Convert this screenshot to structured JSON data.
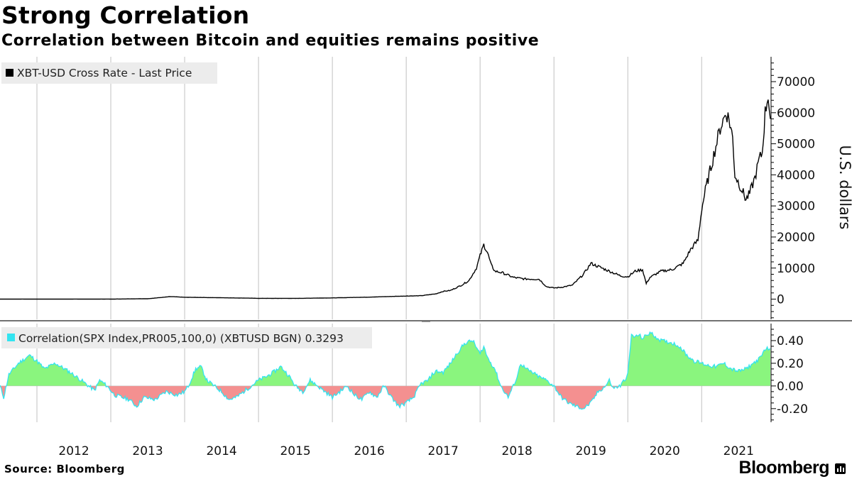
{
  "title": "Strong Correlation",
  "subtitle": "Correlation between Bitcoin and equities remains positive",
  "source": "Source: Bloomberg",
  "brand": "Bloomberg",
  "colors": {
    "price_line": "#000000",
    "corr_line": "#33e4f0",
    "corr_positive": "#8af57e",
    "corr_negative": "#f49090",
    "grid": "#c0c0c0"
  },
  "chart_data": [
    {
      "type": "line",
      "title": "XBT-USD Cross Rate - Last Price",
      "legend": "XBT-USD Cross Rate - Last Price",
      "legend_position": "top-left",
      "ylabel": "U.S. dollars",
      "ylim": [
        -6500,
        78000
      ],
      "yticks": [
        0,
        10000,
        20000,
        30000,
        40000,
        50000,
        60000,
        70000
      ],
      "x_range": [
        2011.5,
        2021.93
      ],
      "series": [
        {
          "name": "XBT-USD Cross Rate - Last Price",
          "x": [
            2011.5,
            2012.0,
            2012.5,
            2013.0,
            2013.3,
            2013.5,
            2013.8,
            2013.92,
            2014.0,
            2014.2,
            2014.5,
            2014.8,
            2015.0,
            2015.5,
            2016.0,
            2016.5,
            2017.0,
            2017.2,
            2017.4,
            2017.5,
            2017.6,
            2017.75,
            2017.85,
            2017.95,
            2018.0,
            2018.05,
            2018.1,
            2018.15,
            2018.2,
            2018.3,
            2018.45,
            2018.6,
            2018.8,
            2018.9,
            2019.0,
            2019.1,
            2019.25,
            2019.4,
            2019.5,
            2019.6,
            2019.75,
            2019.9,
            2020.0,
            2020.1,
            2020.2,
            2020.25,
            2020.3,
            2020.45,
            2020.6,
            2020.75,
            2020.85,
            2020.95,
            2021.0,
            2021.05,
            2021.1,
            2021.15,
            2021.25,
            2021.33,
            2021.37,
            2021.42,
            2021.45,
            2021.55,
            2021.6,
            2021.65,
            2021.72,
            2021.78,
            2021.82,
            2021.86,
            2021.9,
            2021.93
          ],
          "values": [
            10,
            5,
            8,
            15,
            100,
            130,
            800,
            700,
            600,
            550,
            450,
            350,
            260,
            250,
            400,
            650,
            1000,
            1100,
            1700,
            2500,
            2800,
            4500,
            6000,
            10000,
            14000,
            17500,
            15000,
            11000,
            9000,
            8500,
            7000,
            6500,
            6400,
            4000,
            3600,
            3800,
            4500,
            8000,
            11500,
            10500,
            9000,
            7500,
            7200,
            9000,
            9500,
            5000,
            7000,
            9000,
            9500,
            11500,
            16000,
            19000,
            29000,
            35000,
            40000,
            45000,
            55000,
            60000,
            58000,
            52000,
            40000,
            35000,
            32000,
            34000,
            39000,
            45000,
            47000,
            60000,
            66000,
            58000
          ]
        }
      ]
    },
    {
      "type": "area",
      "title": "Correlation(SPX Index,PR005,100,0) (XBTUSD BGN) 0.3293",
      "legend": "Correlation(SPX Index,PR005,100,0) (XBTUSD BGN) 0.3293",
      "legend_position": "top-left",
      "last_value": 0.3293,
      "ylim": [
        -0.32,
        0.55
      ],
      "yticks": [
        0.4,
        0.2,
        0.0,
        -0.2
      ],
      "ytick_labels": [
        "0.40",
        "0.20",
        "0.00",
        "-0.20"
      ],
      "x_range": [
        2011.5,
        2021.93
      ],
      "series": [
        {
          "name": "Correlation(SPX Index,PR005,100,0) (XBTUSD BGN)",
          "x": [
            2011.5,
            2011.55,
            2011.62,
            2011.75,
            2011.9,
            2012.0,
            2012.1,
            2012.25,
            2012.45,
            2012.6,
            2012.7,
            2012.78,
            2012.85,
            2012.95,
            2013.05,
            2013.15,
            2013.25,
            2013.35,
            2013.45,
            2013.6,
            2013.75,
            2013.9,
            2014.0,
            2014.05,
            2014.15,
            2014.22,
            2014.3,
            2014.4,
            2014.5,
            2014.6,
            2014.7,
            2014.8,
            2014.9,
            2015.0,
            2015.1,
            2015.2,
            2015.3,
            2015.4,
            2015.5,
            2015.6,
            2015.7,
            2015.8,
            2015.9,
            2016.0,
            2016.1,
            2016.2,
            2016.3,
            2016.4,
            2016.5,
            2016.6,
            2016.7,
            2016.8,
            2016.9,
            2017.0,
            2017.1,
            2017.2,
            2017.3,
            2017.35,
            2017.4,
            2017.5,
            2017.6,
            2017.7,
            2017.8,
            2017.9,
            2018.0,
            2018.05,
            2018.1,
            2018.2,
            2018.28,
            2018.33,
            2018.38,
            2018.45,
            2018.5,
            2018.55,
            2018.62,
            2018.7,
            2018.8,
            2018.9,
            2019.0,
            2019.1,
            2019.2,
            2019.3,
            2019.4,
            2019.5,
            2019.6,
            2019.7,
            2019.75,
            2019.8,
            2019.9,
            2020.0,
            2020.05,
            2020.1,
            2020.15,
            2020.2,
            2020.3,
            2020.45,
            2020.6,
            2020.7,
            2020.8,
            2020.9,
            2021.0,
            2021.1,
            2021.2,
            2021.3,
            2021.4,
            2021.5,
            2021.6,
            2021.7,
            2021.8,
            2021.86,
            2021.93
          ],
          "values": [
            0.0,
            -0.1,
            0.1,
            0.2,
            0.27,
            0.22,
            0.15,
            0.2,
            0.12,
            0.05,
            0.0,
            -0.04,
            0.05,
            0.0,
            -0.08,
            -0.1,
            -0.12,
            -0.18,
            -0.1,
            -0.12,
            -0.05,
            -0.08,
            -0.05,
            0.0,
            0.15,
            0.17,
            0.05,
            0.0,
            -0.05,
            -0.12,
            -0.1,
            -0.05,
            0.0,
            0.05,
            0.08,
            0.12,
            0.17,
            0.1,
            0.0,
            -0.05,
            0.05,
            0.0,
            -0.05,
            -0.1,
            -0.05,
            0.0,
            -0.08,
            -0.12,
            -0.05,
            -0.1,
            0.0,
            -0.1,
            -0.18,
            -0.15,
            -0.1,
            0.02,
            0.05,
            0.1,
            0.13,
            0.12,
            0.2,
            0.3,
            0.38,
            0.4,
            0.28,
            0.35,
            0.25,
            0.15,
            0.0,
            -0.05,
            -0.1,
            0.0,
            0.08,
            0.2,
            0.15,
            0.12,
            0.08,
            0.05,
            0.0,
            -0.1,
            -0.15,
            -0.18,
            -0.2,
            -0.15,
            -0.05,
            0.0,
            0.05,
            -0.02,
            0.0,
            0.1,
            0.45,
            0.43,
            0.45,
            0.42,
            0.47,
            0.4,
            0.38,
            0.35,
            0.27,
            0.22,
            0.2,
            0.18,
            0.17,
            0.2,
            0.15,
            0.13,
            0.15,
            0.2,
            0.25,
            0.33,
            0.3293
          ]
        }
      ]
    }
  ],
  "x_axis": {
    "tick_labels": [
      "2012",
      "2013",
      "2014",
      "2015",
      "2016",
      "2017",
      "2018",
      "2019",
      "2020",
      "2021"
    ],
    "label_positions": [
      2012.5,
      2013.5,
      2014.5,
      2015.5,
      2016.5,
      2017.5,
      2018.5,
      2019.5,
      2020.5,
      2021.5
    ],
    "gridline_positions": [
      2012.0,
      2013.0,
      2014.0,
      2015.0,
      2016.0,
      2017.0,
      2018.0,
      2019.0,
      2020.0,
      2021.0
    ]
  }
}
